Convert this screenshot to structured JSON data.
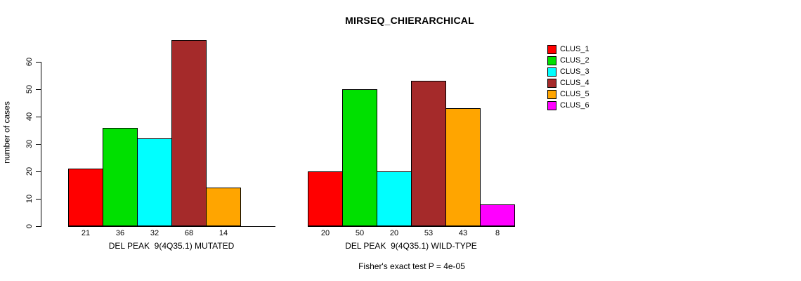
{
  "chart_data": {
    "type": "bar",
    "title": "MIRSEQ_CHIERARCHICAL",
    "ylabel": "number of cases",
    "xlabel": "",
    "ylim": [
      0,
      60
    ],
    "yticks": [
      0,
      10,
      20,
      30,
      40,
      50,
      60
    ],
    "grid": false,
    "legend_position": "top-right-outside",
    "bar_border_color": "#000000",
    "clusters": [
      {
        "name": "CLUS_1",
        "color": "#FF0000"
      },
      {
        "name": "CLUS_2",
        "color": "#00E000"
      },
      {
        "name": "CLUS_3",
        "color": "#00FFFF"
      },
      {
        "name": "CLUS_4",
        "color": "#A52A2A"
      },
      {
        "name": "CLUS_5",
        "color": "#FFA500"
      },
      {
        "name": "CLUS_6",
        "color": "#FF00FF"
      }
    ],
    "groups": [
      {
        "label": "DEL PEAK  9(4Q35.1) MUTATED",
        "values": [
          21,
          36,
          32,
          68,
          14,
          0
        ],
        "value_labels": [
          "21",
          "36",
          "32",
          "68",
          "14",
          ""
        ]
      },
      {
        "label": "DEL PEAK  9(4Q35.1) WILD-TYPE",
        "values": [
          20,
          50,
          20,
          53,
          43,
          8
        ],
        "value_labels": [
          "20",
          "50",
          "20",
          "53",
          "43",
          "8"
        ]
      }
    ],
    "annotation": "Fisher's exact test P = 4e-05"
  }
}
